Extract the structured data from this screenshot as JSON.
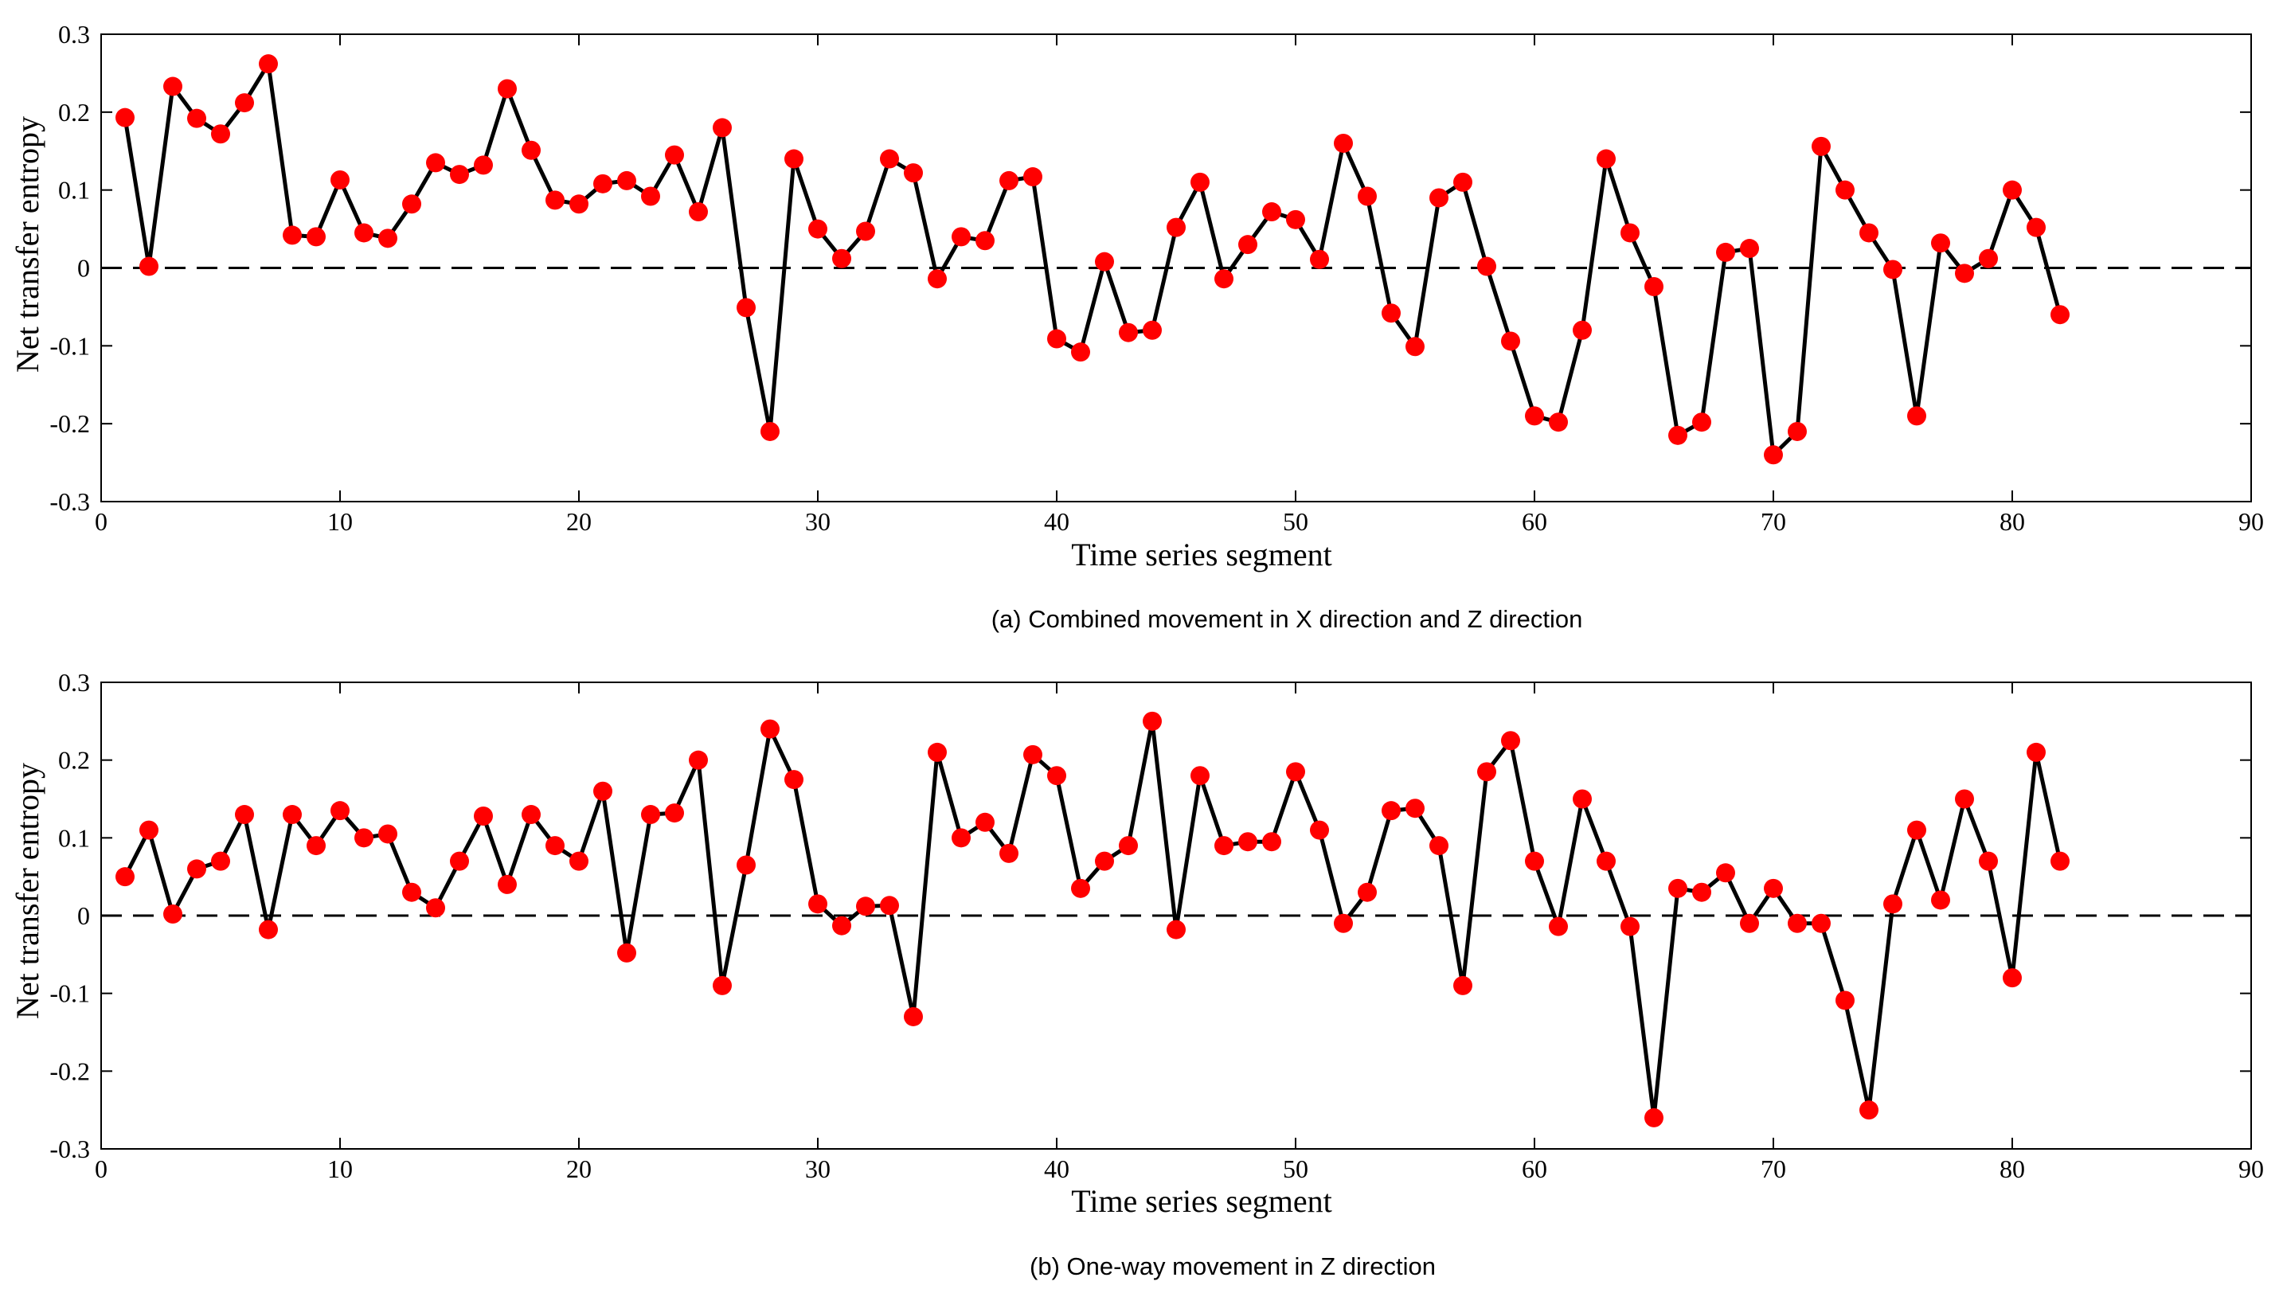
{
  "chart_data": [
    {
      "type": "line",
      "title": "",
      "caption": "(a)  Combined movement in X direction and Z direction",
      "xlabel": "Time series segment",
      "ylabel": "Net transfer entropy",
      "xlim": [
        0,
        90
      ],
      "ylim": [
        -0.3,
        0.3
      ],
      "xticks": [
        0,
        10,
        20,
        30,
        40,
        50,
        60,
        70,
        80,
        90
      ],
      "yticks": [
        -0.3,
        -0.2,
        -0.1,
        0,
        0.1,
        0.2,
        0.3
      ],
      "xtick_labels": [
        "0",
        "10",
        "20",
        "30",
        "40",
        "50",
        "60",
        "70",
        "80",
        "90"
      ],
      "ytick_labels": [
        "-0.3",
        "-0.2",
        "-0.1",
        "0",
        "0.1",
        "0.2",
        "0.3"
      ],
      "reference_line": 0,
      "grid": false,
      "series": [
        {
          "name": "net transfer entropy (a)",
          "color": "#000000",
          "marker_color": "#ff0000",
          "x": [
            1,
            2,
            3,
            4,
            5,
            6,
            7,
            8,
            9,
            10,
            11,
            12,
            13,
            14,
            15,
            16,
            17,
            18,
            19,
            20,
            21,
            22,
            23,
            24,
            25,
            26,
            27,
            28,
            29,
            30,
            31,
            32,
            33,
            34,
            35,
            36,
            37,
            38,
            39,
            40,
            41,
            42,
            43,
            44,
            45,
            46,
            47,
            48,
            49,
            50,
            51,
            52,
            53,
            54,
            55,
            56,
            57,
            58,
            59,
            60,
            61,
            62,
            63,
            64,
            65,
            66,
            67,
            68,
            69,
            70,
            71,
            72,
            73,
            74,
            75,
            76,
            77,
            78,
            79,
            80,
            81,
            82
          ],
          "values": [
            0.193,
            0.002,
            0.233,
            0.192,
            0.172,
            0.212,
            0.262,
            0.042,
            0.04,
            0.113,
            0.045,
            0.038,
            0.082,
            0.135,
            0.12,
            0.132,
            0.23,
            0.151,
            0.087,
            0.082,
            0.108,
            0.112,
            0.092,
            0.145,
            0.072,
            0.18,
            -0.051,
            -0.21,
            0.14,
            0.05,
            0.012,
            0.047,
            0.14,
            0.122,
            -0.014,
            0.04,
            0.035,
            0.112,
            0.117,
            -0.091,
            -0.108,
            0.008,
            -0.083,
            -0.08,
            0.052,
            0.11,
            -0.014,
            0.03,
            0.072,
            0.062,
            0.011,
            0.16,
            0.092,
            -0.058,
            -0.101,
            0.09,
            0.11,
            0.002,
            -0.094,
            -0.19,
            -0.198,
            -0.08,
            0.14,
            0.045,
            -0.024,
            -0.215,
            -0.198,
            0.02,
            0.025,
            -0.24,
            -0.21,
            0.156,
            0.1,
            0.045,
            -0.002,
            -0.19,
            0.032,
            -0.007,
            0.012,
            0.1,
            0.052,
            -0.06
          ]
        }
      ]
    },
    {
      "type": "line",
      "title": "",
      "caption": "(b)  One-way movement in Z direction",
      "xlabel": "Time series segment",
      "ylabel": "Net transfer entropy",
      "xlim": [
        0,
        90
      ],
      "ylim": [
        -0.3,
        0.3
      ],
      "xticks": [
        0,
        10,
        20,
        30,
        40,
        50,
        60,
        70,
        80,
        90
      ],
      "yticks": [
        -0.3,
        -0.2,
        -0.1,
        0,
        0.1,
        0.2,
        0.3
      ],
      "xtick_labels": [
        "0",
        "10",
        "20",
        "30",
        "40",
        "50",
        "60",
        "70",
        "80",
        "90"
      ],
      "ytick_labels": [
        "-0.3",
        "-0.2",
        "-0.1",
        "0",
        "0.1",
        "0.2",
        "0.3"
      ],
      "reference_line": 0,
      "grid": false,
      "series": [
        {
          "name": "net transfer entropy (b)",
          "color": "#000000",
          "marker_color": "#ff0000",
          "x": [
            1,
            2,
            3,
            4,
            5,
            6,
            7,
            8,
            9,
            10,
            11,
            12,
            13,
            14,
            15,
            16,
            17,
            18,
            19,
            20,
            21,
            22,
            23,
            24,
            25,
            26,
            27,
            28,
            29,
            30,
            31,
            32,
            33,
            34,
            35,
            36,
            37,
            38,
            39,
            40,
            41,
            42,
            43,
            44,
            45,
            46,
            47,
            48,
            49,
            50,
            51,
            52,
            53,
            54,
            55,
            56,
            57,
            58,
            59,
            60,
            61,
            62,
            63,
            64,
            65,
            66,
            67,
            68,
            69,
            70,
            71,
            72,
            73,
            74,
            75,
            76,
            77,
            78,
            79,
            80,
            81,
            82
          ],
          "values": [
            0.05,
            0.11,
            0.002,
            0.06,
            0.07,
            0.13,
            -0.018,
            0.13,
            0.09,
            0.135,
            0.1,
            0.105,
            0.03,
            0.01,
            0.07,
            0.128,
            0.04,
            0.13,
            0.09,
            0.07,
            0.16,
            -0.048,
            0.13,
            0.132,
            0.2,
            -0.09,
            0.065,
            0.24,
            0.175,
            0.015,
            -0.013,
            0.012,
            0.013,
            -0.13,
            0.21,
            0.1,
            0.12,
            0.08,
            0.207,
            0.18,
            0.035,
            0.07,
            0.09,
            0.25,
            -0.018,
            0.18,
            0.09,
            0.095,
            0.095,
            0.185,
            0.11,
            -0.01,
            0.03,
            0.135,
            0.138,
            0.09,
            -0.09,
            0.185,
            0.225,
            0.07,
            -0.014,
            0.15,
            0.07,
            -0.014,
            -0.26,
            0.035,
            0.03,
            0.055,
            -0.01,
            0.035,
            -0.01,
            -0.01,
            -0.109,
            -0.25,
            0.015,
            0.11,
            0.02,
            0.15,
            0.07,
            -0.08,
            0.21,
            0.07
          ]
        }
      ]
    }
  ]
}
